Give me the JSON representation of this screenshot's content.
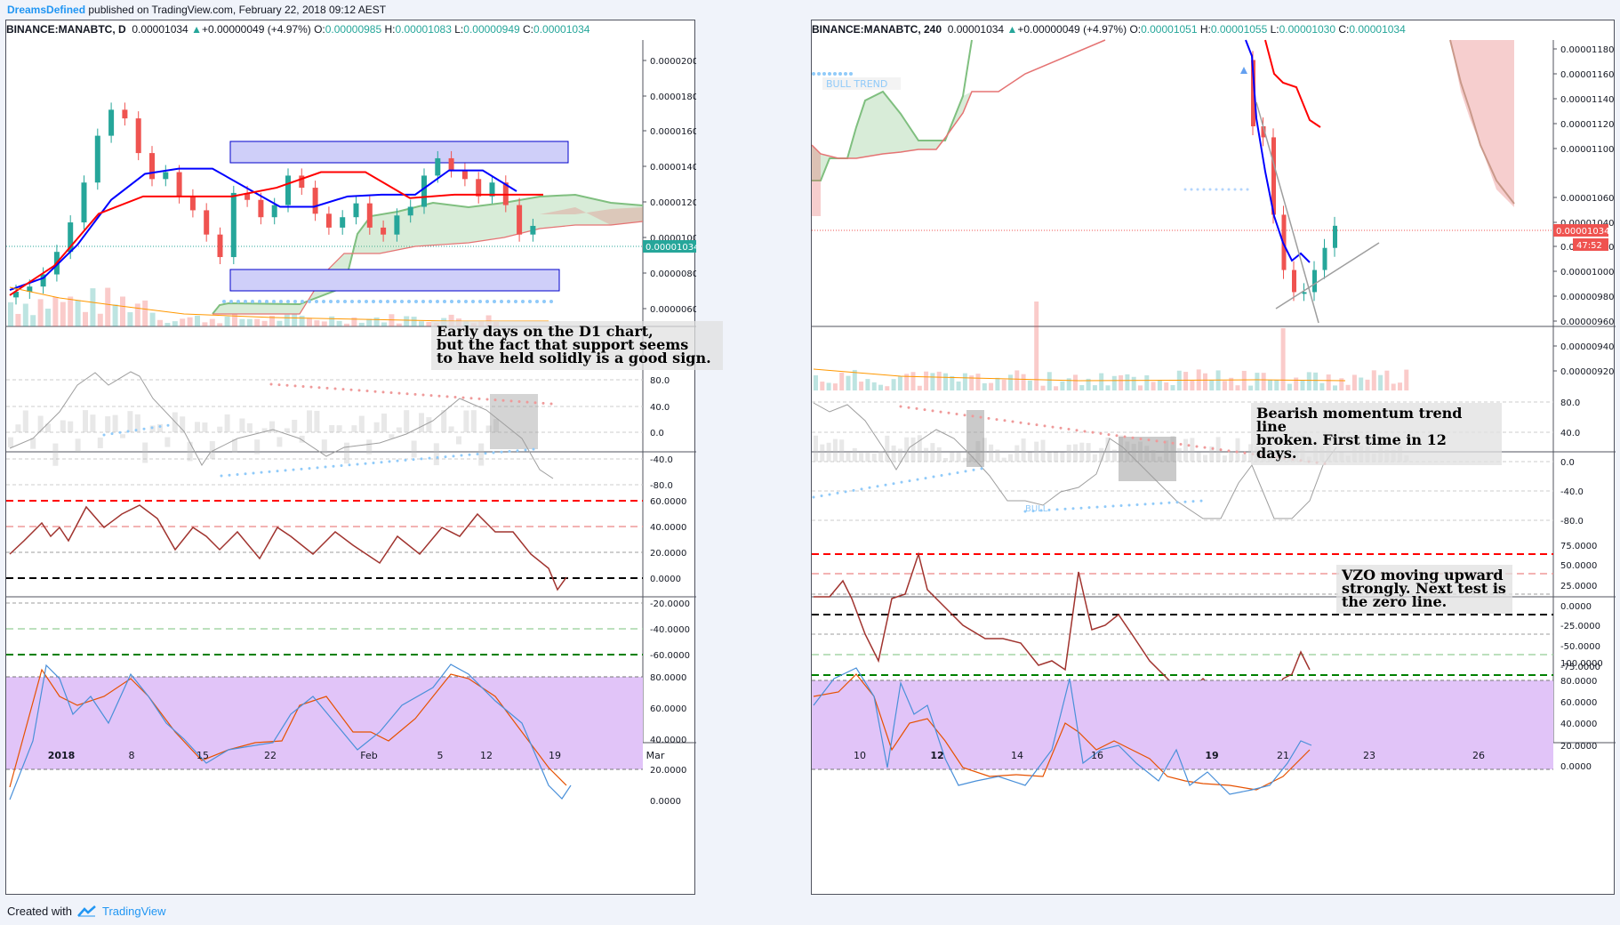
{
  "meta": {
    "author": "DreamsDefined",
    "published_text": "published on TradingView.com, February 22, 2018 09:12 AEST",
    "created_with": "Created with",
    "brand": "TradingView"
  },
  "colors": {
    "up": "#26a69a",
    "down": "#ef5350",
    "tenkan": "#0000ff",
    "kijun": "#ff0000",
    "cloud_green": "#7fbf7f",
    "cloud_red": "#e57373",
    "zone_fill": "#cfcff9",
    "stoch_band": "#e1c4f8",
    "vzo_line": "#a0332e"
  },
  "left_panel": {
    "header": {
      "symbol": "BINANCE:MANABTC, D",
      "last": "0.00001034",
      "change": "+0.00000049 (+4.97%)",
      "o": "0.00000985",
      "h": "0.00001083",
      "l": "0.00000949",
      "c": "0.00001034"
    },
    "price_ticks": [
      "0.00002000",
      "0.00001800",
      "0.00001600",
      "0.00001400",
      "0.00001200",
      "0.00001000",
      "0.00000800",
      "0.00000600"
    ],
    "last_price_tag": "0.00001034",
    "momentum_ticks": [
      "80.0",
      "40.0",
      "0.0",
      "-40.0",
      "-80.0"
    ],
    "vzo_ticks": [
      "60.0000",
      "40.0000",
      "20.0000",
      "0.0000",
      "-20.0000",
      "-40.0000",
      "-60.0000"
    ],
    "stoch_ticks": [
      "80.0000",
      "60.0000",
      "40.0000",
      "20.0000",
      "0.0000"
    ],
    "x_ticks": [
      "2018",
      "8",
      "15",
      "22",
      "Feb",
      "5",
      "12",
      "19",
      "Mar"
    ],
    "note": "Early days on the D1 chart,\nbut the fact that support seems\nto have held solidly is a good sign."
  },
  "right_panel": {
    "header": {
      "symbol": "BINANCE:MANABTC, 240",
      "last": "0.00001034",
      "change": "+0.00000049 (+4.97%)",
      "o": "0.00001051",
      "h": "0.00001055",
      "l": "0.00001030",
      "c": "0.00001034"
    },
    "price_ticks": [
      "0.00001180",
      "0.00001160",
      "0.00001140",
      "0.00001120",
      "0.00001100",
      "0.00001060",
      "0.00001040",
      "0.00001020",
      "0.00001000",
      "0.00000980",
      "0.00000960",
      "0.00000940",
      "0.00000920"
    ],
    "last_price_tag": "0.00001034",
    "countdown_tag": "47:52",
    "bull_trend_label": "BULL TREND",
    "bull_label": "BULL",
    "momentum_ticks": [
      "80.0",
      "40.0",
      "0.0",
      "-40.0",
      "-80.0"
    ],
    "vzo_ticks": [
      "75.0000",
      "50.0000",
      "25.0000",
      "0.0000",
      "-25.0000",
      "-50.0000",
      "-75.0000"
    ],
    "stoch_ticks": [
      "100.0000",
      "80.0000",
      "60.0000",
      "40.0000",
      "20.0000",
      "0.0000"
    ],
    "x_ticks": [
      "10",
      "12",
      "14",
      "16",
      "19",
      "21",
      "23",
      "26"
    ],
    "note_momentum": "Bearish momentum trend line\nbroken. First time in 12\ndays.",
    "note_vzo": "VZO moving upward\nstrongly. Next test is\nthe zero line."
  },
  "chart_data": [
    {
      "type": "line",
      "title": "BINANCE:MANABTC, D",
      "candles_close": [
        6.5e-06,
        6.8e-06,
        7.5e-06,
        8.8e-06,
        1.05e-05,
        1.28e-05,
        1.55e-05,
        1.7e-05,
        1.65e-05,
        1.45e-05,
        1.3e-05,
        1.34e-05,
        1.2e-05,
        1.12e-05,
        9.8e-06,
        8.5e-06,
        1.22e-05,
        1.18e-05,
        1.08e-05,
        1.15e-05,
        1.32e-05,
        1.25e-05,
        1.1e-05,
        1.02e-05,
        1.08e-05,
        1.16e-05,
        1.02e-05,
        9.8e-06,
        1.09e-05,
        1.14e-05,
        1.32e-05,
        1.42e-05,
        1.35e-05,
        1.3e-05,
        1.2e-05,
        1.28e-05,
        1.15e-05,
        9.8e-06,
        1.03e-05
      ],
      "tenkan_points": [
        6.6e-06,
        7.3e-06,
        9.2e-06,
        1.18e-05,
        1.33e-05,
        1.36e-05,
        1.36e-05,
        1.25e-05,
        1.14e-05,
        1.14e-05,
        1.2e-05,
        1.21e-05,
        1.21e-05,
        1.35e-05,
        1.35e-05,
        1.23e-05
      ],
      "kijun_points": [
        6.3e-06,
        8e-06,
        1.1e-05,
        1.2e-05,
        1.2e-05,
        1.2e-05,
        1.25e-05,
        1.34e-05,
        1.34e-05,
        1.19e-05,
        1.21e-05,
        1.21e-05,
        1.21e-05
      ],
      "support_zone": [
        8.4e-06,
        9.4e-06
      ],
      "resistance_zone": [
        1.44e-05,
        1.54e-05
      ],
      "ylim": [
        4.5e-06,
        2.02e-05
      ],
      "series": [
        {
          "name": "Momentum",
          "ylim": [
            -80,
            80
          ]
        },
        {
          "name": "VZO",
          "ylim": [
            -60,
            60
          ]
        },
        {
          "name": "Stoch",
          "ylim": [
            0,
            100
          ]
        }
      ]
    },
    {
      "type": "line",
      "title": "BINANCE:MANABTC, 240",
      "candles_close": [
        1.12e-05,
        1.11e-05,
        1.04e-05,
        9.9e-06,
        9.7e-06,
        9.7e-06,
        9.9e-06,
        1.01e-05,
        1.03e-05
      ],
      "tenkan_points": [
        1.18e-05,
        1.1e-05,
        1.05e-05,
        1.03e-05,
        1e-05
      ],
      "ylim": [
        9.1e-06,
        1.19e-05
      ]
    }
  ]
}
